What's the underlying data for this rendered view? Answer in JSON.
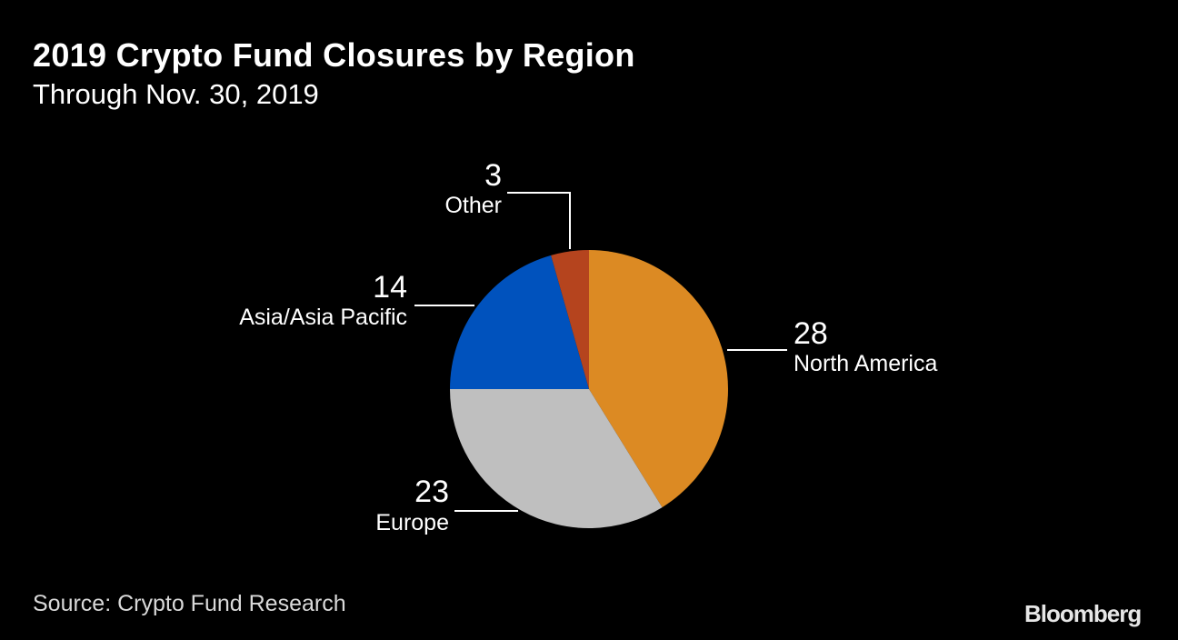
{
  "title": "2019 Crypto Fund Closures by Region",
  "subtitle": "Through Nov. 30, 2019",
  "source": "Source: Crypto Fund Research",
  "brand": "Bloomberg",
  "chart_data": {
    "type": "pie",
    "title": "2019 Crypto Fund Closures by Region",
    "subtitle": "Through Nov. 30, 2019",
    "start_angle": "12 o'clock",
    "direction": "clockwise",
    "slices": [
      {
        "label": "North America",
        "value": 28,
        "color": "#dc8a23"
      },
      {
        "label": "Europe",
        "value": 23,
        "color": "#bfbfbf"
      },
      {
        "label": "Asia/Asia Pacific",
        "value": 14,
        "color": "#0052bd"
      },
      {
        "label": "Other",
        "value": 3,
        "color": "#b5441e"
      }
    ]
  }
}
